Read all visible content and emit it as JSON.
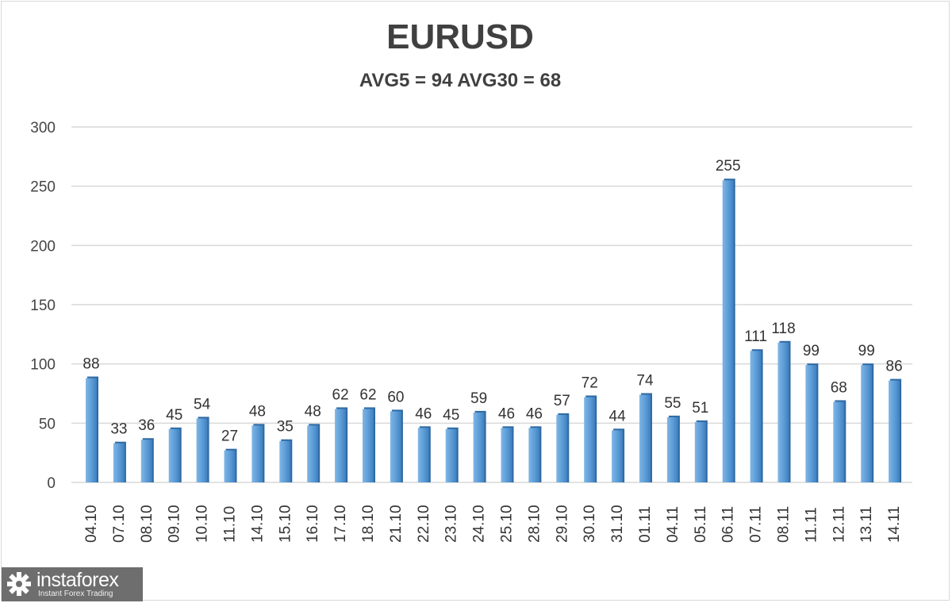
{
  "chart_data": {
    "type": "bar",
    "title": "EURUSD",
    "subtitle": "AVG5 = 94 AVG30 = 68",
    "xlabel": "",
    "ylabel": "",
    "ylim": [
      0,
      300
    ],
    "yticks": [
      0,
      50,
      100,
      150,
      200,
      250,
      300
    ],
    "grid": true,
    "legend": "none",
    "bar_color": "#5b9bd5",
    "categories": [
      "04.10",
      "07.10",
      "08.10",
      "09.10",
      "10.10",
      "11.10",
      "14.10",
      "15.10",
      "16.10",
      "17.10",
      "18.10",
      "21.10",
      "22.10",
      "23.10",
      "24.10",
      "25.10",
      "28.10",
      "29.10",
      "30.10",
      "31.10",
      "01.11",
      "04.11",
      "05.11",
      "06.11",
      "07.11",
      "08.11",
      "11.11",
      "12.11",
      "13.11",
      "14.11"
    ],
    "values": [
      88,
      33,
      36,
      45,
      54,
      27,
      48,
      35,
      48,
      62,
      62,
      60,
      46,
      45,
      59,
      46,
      46,
      57,
      72,
      44,
      74,
      55,
      51,
      255,
      111,
      118,
      99,
      68,
      99,
      86
    ]
  },
  "logo": {
    "name": "instaforex",
    "tagline": "Instant Forex Trading"
  }
}
